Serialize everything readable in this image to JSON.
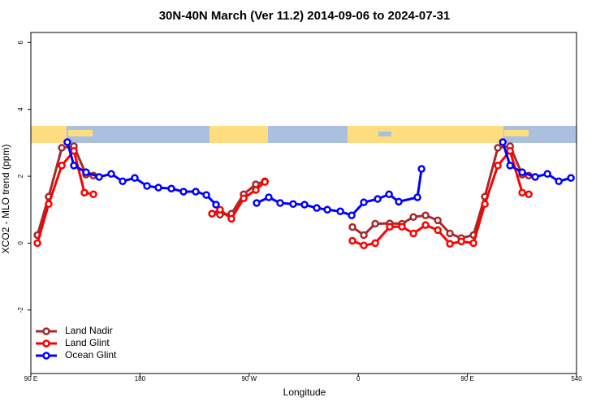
{
  "chart_data": {
    "type": "line",
    "title": "30N-40N March (Ver 11.2)   2014-09-06 to 2024-07-31",
    "x_label": "Longitude",
    "y_label": "XCO2 - MLO trend (ppm)",
    "xlim": [
      90,
      540
    ],
    "ylim": [
      -3.9,
      6.3
    ],
    "xticks": [
      {
        "value": 90,
        "label": "90 E"
      },
      180,
      {
        "value": 270,
        "label": "90 W"
      },
      {
        "value": 360,
        "label": "0"
      },
      {
        "value": 450,
        "label": "90 E"
      },
      540
    ],
    "yticks": [
      -2,
      0,
      2,
      4,
      6
    ],
    "legend": "bottomleft",
    "series": [
      {
        "name": "Land Nadir",
        "color": "#a52a2a",
        "x": [
          95.4,
          104.7,
          115.5,
          125.5,
          135.5,
          141.6,
          null,
          239.4,
          246.0,
          255.4,
          265.5,
          275.5,
          283.0,
          null,
          355.2,
          364.6,
          374.0,
          386.0,
          396.0,
          405.5,
          415.5,
          425.6,
          435.6,
          445.0,
          455.0,
          464.4,
          475.1,
          485.2,
          495.2,
          500.6
        ],
        "values": [
          0.24,
          1.39,
          2.85,
          2.9,
          2.05,
          2.02,
          null,
          0.88,
          0.85,
          0.88,
          1.46,
          1.76,
          1.85,
          null,
          0.48,
          0.24,
          0.58,
          0.59,
          0.58,
          0.78,
          0.83,
          0.68,
          0.29,
          0.15,
          0.24,
          1.39,
          2.85,
          2.9,
          2.05,
          2.02
        ]
      },
      {
        "name": "Land Glint",
        "color": "#ff0000",
        "x": [
          95.4,
          104.7,
          115.5,
          125.5,
          134.2,
          141.6,
          null,
          239.4,
          246.0,
          255.4,
          265.5,
          275.5,
          283.0,
          null,
          355.2,
          364.6,
          374.0,
          386.0,
          396.0,
          405.5,
          415.5,
          425.6,
          435.6,
          445.0,
          455.0,
          464.4,
          475.1,
          485.2,
          495.2,
          500.6
        ],
        "values": [
          0.0,
          1.17,
          2.32,
          2.76,
          1.51,
          1.46,
          null,
          0.88,
          1.0,
          0.73,
          1.34,
          1.59,
          1.83,
          null,
          0.07,
          -0.07,
          0.0,
          0.49,
          0.49,
          0.29,
          0.54,
          0.39,
          -0.02,
          0.05,
          0.0,
          1.17,
          2.32,
          2.76,
          1.51,
          1.46
        ]
      },
      {
        "name": "Ocean Glint",
        "color": "#0000ff",
        "x": [
          120.1,
          125.5,
          135.5,
          146.3,
          156.3,
          165.7,
          175.7,
          185.8,
          195.2,
          205.9,
          215.9,
          226.0,
          234.7,
          242.7,
          null,
          276.2,
          286.2,
          295.6,
          306.3,
          315.7,
          325.8,
          334.5,
          345.2,
          354.6,
          364.6,
          376.0,
          385.4,
          393.4,
          408.8,
          412.2,
          null,
          479.2,
          485.2,
          495.2,
          505.9,
          516.0,
          525.4,
          535.4
        ],
        "values": [
          3.02,
          2.32,
          2.12,
          1.98,
          2.07,
          1.85,
          1.95,
          1.71,
          1.66,
          1.63,
          1.54,
          1.54,
          1.44,
          1.15,
          null,
          1.2,
          1.37,
          1.2,
          1.17,
          1.15,
          1.05,
          1.0,
          0.95,
          0.83,
          1.22,
          1.32,
          1.46,
          1.24,
          1.37,
          2.22,
          null,
          3.02,
          2.32,
          2.12,
          1.98,
          2.07,
          1.85,
          1.95
        ]
      }
    ]
  }
}
